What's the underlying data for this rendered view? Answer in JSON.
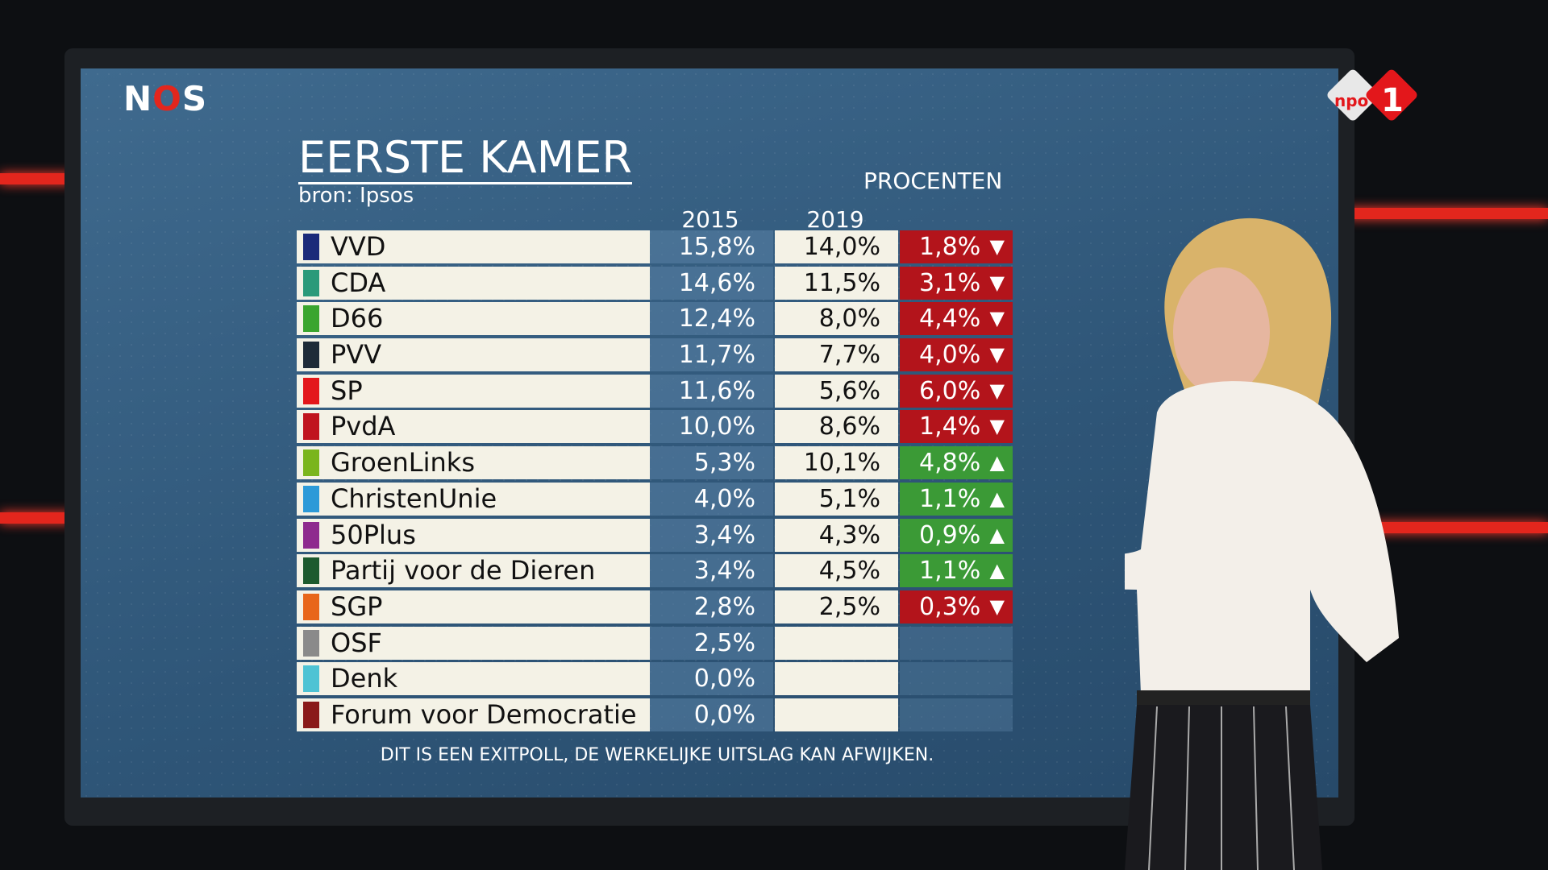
{
  "branding": {
    "broadcaster": "NOS",
    "channel": "npo 1"
  },
  "header": {
    "title": "EERSTE KAMER",
    "source": "bron: Ipsos",
    "unit_label": "PROCENTEN"
  },
  "columns": {
    "year_a": "2015",
    "year_b": "2019"
  },
  "rows": [
    {
      "party": "VVD",
      "color": "#1b2a7a",
      "v2015": "15,8%",
      "v2019": "14,0%",
      "change": "1,8%",
      "direction": "down"
    },
    {
      "party": "CDA",
      "color": "#2a9a7a",
      "v2015": "14,6%",
      "v2019": "11,5%",
      "change": "3,1%",
      "direction": "down"
    },
    {
      "party": "D66",
      "color": "#3aa52e",
      "v2015": "12,4%",
      "v2019": "8,0%",
      "change": "4,4%",
      "direction": "down"
    },
    {
      "party": "PVV",
      "color": "#1e2b38",
      "v2015": "11,7%",
      "v2019": "7,7%",
      "change": "4,0%",
      "direction": "down"
    },
    {
      "party": "SP",
      "color": "#e3171b",
      "v2015": "11,6%",
      "v2019": "5,6%",
      "change": "6,0%",
      "direction": "down"
    },
    {
      "party": "PvdA",
      "color": "#c0141e",
      "v2015": "10,0%",
      "v2019": "8,6%",
      "change": "1,4%",
      "direction": "down"
    },
    {
      "party": "GroenLinks",
      "color": "#7ab51d",
      "v2015": "5,3%",
      "v2019": "10,1%",
      "change": "4,8%",
      "direction": "up"
    },
    {
      "party": "ChristenUnie",
      "color": "#2c9ad8",
      "v2015": "4,0%",
      "v2019": "5,1%",
      "change": "1,1%",
      "direction": "up"
    },
    {
      "party": "50Plus",
      "color": "#8e2a8e",
      "v2015": "3,4%",
      "v2019": "4,3%",
      "change": "0,9%",
      "direction": "up"
    },
    {
      "party": "Partij voor de Dieren",
      "color": "#1d5a2e",
      "v2015": "3,4%",
      "v2019": "4,5%",
      "change": "1,1%",
      "direction": "up"
    },
    {
      "party": "SGP",
      "color": "#e8661a",
      "v2015": "2,8%",
      "v2019": "2,5%",
      "change": "0,3%",
      "direction": "down"
    },
    {
      "party": "OSF",
      "color": "#8a8a8a",
      "v2015": "2,5%",
      "v2019": "",
      "change": "",
      "direction": ""
    },
    {
      "party": "Denk",
      "color": "#4ec3d4",
      "v2015": "0,0%",
      "v2019": "",
      "change": "",
      "direction": ""
    },
    {
      "party": "Forum voor Democratie",
      "color": "#8a1a1a",
      "v2015": "0,0%",
      "v2019": "",
      "change": "",
      "direction": ""
    }
  ],
  "colors": {
    "down": "#b3141b",
    "up": "#3b9a36"
  },
  "icons": {
    "down": "▼",
    "up": "▲"
  },
  "footer": "DIT IS EEN EXITPOLL, DE WERKELIJKE UITSLAG KAN AFWIJKEN."
}
